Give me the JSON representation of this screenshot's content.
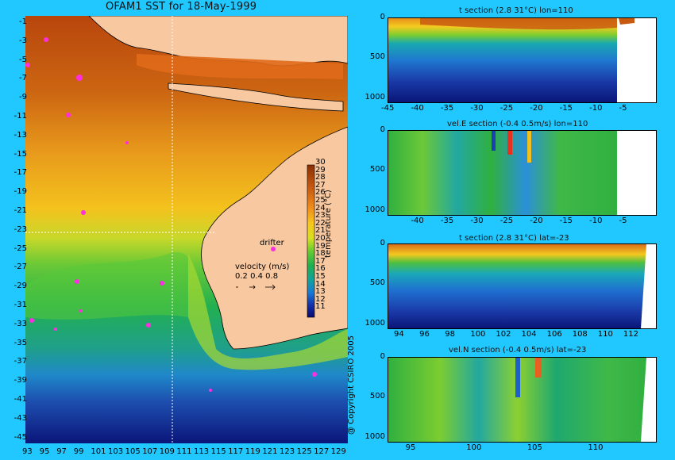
{
  "main_title": "OFAM1 SST for 18-May-1999",
  "copyright": "@ Copyright CSIRO 2005",
  "map": {
    "lat_labels": [
      "-1",
      "-3",
      "-5",
      "-7",
      "-9",
      "-11",
      "-13",
      "-15",
      "-17",
      "-19",
      "-21",
      "-23",
      "-25",
      "-27",
      "-29",
      "-31",
      "-33",
      "-35",
      "-37",
      "-39",
      "-41",
      "-43",
      "-45"
    ],
    "lon_labels": [
      "93",
      "95",
      "97",
      "99",
      "101",
      "103",
      "105",
      "107",
      "109",
      "111",
      "113",
      "115",
      "117",
      "119",
      "121",
      "123",
      "125",
      "127",
      "129"
    ],
    "colorbar": {
      "label": "temperature (°C)",
      "ticks": [
        "30",
        "29",
        "28",
        "27",
        "26",
        "25",
        "24",
        "23",
        "22",
        "21",
        "20",
        "19",
        "18",
        "17",
        "16",
        "15",
        "14",
        "13",
        "12",
        "11"
      ]
    },
    "legend": {
      "drifter": "drifter",
      "velocity_title": "velocity (m/s)",
      "velocity_scale": "0.2 0.4 0.8"
    }
  },
  "panels": [
    {
      "title": "t section (2.8     31°C) lon=110",
      "x_labels": [
        "-45",
        "-40",
        "-35",
        "-30",
        "-25",
        "-20",
        "-15",
        "-10",
        "-5"
      ],
      "y_labels": [
        "0",
        "500",
        "1000"
      ]
    },
    {
      "title": "vel.E section (-0.4     0.5m/s) lon=110",
      "x_labels": [
        "-40",
        "-35",
        "-30",
        "-25",
        "-20",
        "-15",
        "-10",
        "-5"
      ],
      "y_labels": [
        "0",
        "500",
        "1000"
      ]
    },
    {
      "title": "t section (2.8     31°C) lat=-23",
      "x_labels": [
        "94",
        "96",
        "98",
        "100",
        "102",
        "104",
        "106",
        "108",
        "110",
        "112"
      ],
      "y_labels": [
        "0",
        "500",
        "1000"
      ]
    },
    {
      "title": "vel.N section (-0.4     0.5m/s) lat=-23",
      "x_labels": [
        "95",
        "100",
        "105",
        "110"
      ],
      "y_labels": [
        "0",
        "500",
        "1000"
      ]
    }
  ],
  "chart_data": [
    {
      "type": "heatmap",
      "title": "OFAM1 SST for 18-May-1999",
      "xlabel": "",
      "ylabel": "",
      "xlim": [
        93,
        130
      ],
      "ylim": [
        -45,
        0
      ],
      "colorbar_label": "temperature (°C)",
      "colorbar_range": [
        11,
        30
      ]
    },
    {
      "type": "heatmap",
      "title": "t section (2.8     31°C) lon=110",
      "xlim": [
        -45,
        0
      ],
      "ylim": [
        1050,
        0
      ],
      "range": [
        2.8,
        31
      ]
    },
    {
      "type": "heatmap",
      "title": "vel.E section (-0.4     0.5m/s) lon=110",
      "xlim": [
        -45,
        0
      ],
      "ylim": [
        1050,
        0
      ],
      "range": [
        -0.4,
        0.5
      ]
    },
    {
      "type": "heatmap",
      "title": "t section (2.8     31°C) lat=-23",
      "xlim": [
        93,
        114
      ],
      "ylim": [
        1050,
        0
      ],
      "range": [
        2.8,
        31
      ]
    },
    {
      "type": "heatmap",
      "title": "vel.N section (-0.4     0.5m/s) lat=-23",
      "xlim": [
        93,
        115
      ],
      "ylim": [
        1050,
        0
      ],
      "range": [
        -0.4,
        0.5
      ]
    }
  ]
}
